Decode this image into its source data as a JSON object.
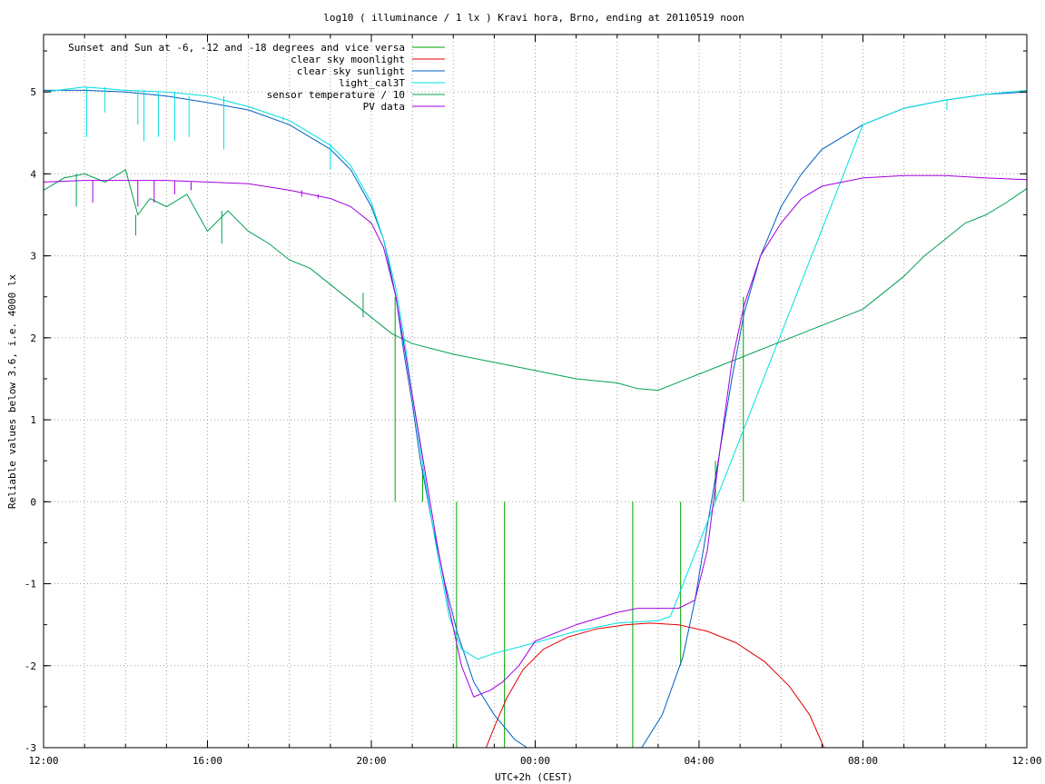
{
  "chart_data": {
    "type": "line",
    "title": "log10 ( illuminance / 1 lx ) Kravi hora, Brno, ending at 20110519 noon",
    "xlabel": "UTC+2h (CEST)",
    "ylabel": "Reliable values below 3.6, i.e. 4000 lx",
    "xlim": [
      0,
      24
    ],
    "ylim": [
      -3,
      5.7
    ],
    "x_unit": "hours since 12:00 of 20110518",
    "grid": true,
    "legend_position": "top-left",
    "x_ticks": [
      {
        "value": 0,
        "label": "12:00"
      },
      {
        "value": 4,
        "label": "16:00"
      },
      {
        "value": 8,
        "label": "20:00"
      },
      {
        "value": 12,
        "label": "00:00"
      },
      {
        "value": 16,
        "label": "04:00"
      },
      {
        "value": 20,
        "label": "08:00"
      },
      {
        "value": 24,
        "label": "12:00"
      }
    ],
    "x_minor_step": 1,
    "y_ticks": [
      {
        "value": 5,
        "label": "5"
      },
      {
        "value": 4,
        "label": "4"
      },
      {
        "value": 3,
        "label": "3"
      },
      {
        "value": 2,
        "label": "2"
      },
      {
        "value": 1,
        "label": "1"
      },
      {
        "value": 0,
        "label": "0"
      },
      {
        "value": -1,
        "label": "-1"
      },
      {
        "value": -2,
        "label": "-2"
      },
      {
        "value": -3,
        "label": "-3"
      }
    ],
    "y_minor_step": 0.5,
    "series": [
      {
        "name": "Sunset and Sun at -6, -12 and -18 degrees and vice versa",
        "color": "#00a000",
        "style": "impulses",
        "markers": [
          {
            "x": 8.58,
            "y_from": 0,
            "y_to": 2.5
          },
          {
            "x": 9.25,
            "y_from": 0,
            "y_to": 0.4
          },
          {
            "x": 10.08,
            "y_from": 0,
            "y_to": -3
          },
          {
            "x": 11.25,
            "y_from": 0,
            "y_to": -3
          },
          {
            "x": 14.38,
            "y_from": 0,
            "y_to": -3
          },
          {
            "x": 15.55,
            "y_from": 0,
            "y_to": -2
          },
          {
            "x": 16.4,
            "y_from": 0,
            "y_to": 0.5
          },
          {
            "x": 17.08,
            "y_from": 0,
            "y_to": 2.5
          }
        ]
      },
      {
        "name": "clear sky moonlight",
        "color": "#e00000",
        "points": [
          [
            10.8,
            -3.0
          ],
          [
            11.0,
            -2.75
          ],
          [
            11.3,
            -2.4
          ],
          [
            11.7,
            -2.05
          ],
          [
            12.2,
            -1.8
          ],
          [
            12.8,
            -1.65
          ],
          [
            13.5,
            -1.55
          ],
          [
            14.2,
            -1.5
          ],
          [
            14.8,
            -1.48
          ],
          [
            15.5,
            -1.5
          ],
          [
            16.2,
            -1.58
          ],
          [
            16.9,
            -1.72
          ],
          [
            17.6,
            -1.95
          ],
          [
            18.2,
            -2.25
          ],
          [
            18.7,
            -2.6
          ],
          [
            19.05,
            -3.0
          ]
        ]
      },
      {
        "name": "clear sky sunlight",
        "color": "#0060c0",
        "points": [
          [
            0,
            5.02
          ],
          [
            1,
            5.02
          ],
          [
            2,
            5.0
          ],
          [
            3,
            4.95
          ],
          [
            4,
            4.87
          ],
          [
            5,
            4.78
          ],
          [
            6,
            4.6
          ],
          [
            7,
            4.3
          ],
          [
            7.5,
            4.05
          ],
          [
            8,
            3.6
          ],
          [
            8.3,
            3.2
          ],
          [
            8.6,
            2.5
          ],
          [
            8.8,
            1.8
          ],
          [
            9.0,
            1.2
          ],
          [
            9.2,
            0.5
          ],
          [
            9.5,
            -0.3
          ],
          [
            9.8,
            -1.0
          ],
          [
            10.1,
            -1.6
          ],
          [
            10.5,
            -2.2
          ],
          [
            11.0,
            -2.6
          ],
          [
            11.5,
            -2.9
          ],
          [
            11.8,
            -3.0
          ]
        ],
        "points_b": [
          [
            14.6,
            -3.0
          ],
          [
            15.1,
            -2.6
          ],
          [
            15.6,
            -1.9
          ],
          [
            15.9,
            -1.2
          ],
          [
            16.2,
            -0.3
          ],
          [
            16.5,
            0.6
          ],
          [
            16.8,
            1.5
          ],
          [
            17.1,
            2.3
          ],
          [
            17.5,
            3.0
          ],
          [
            18.0,
            3.6
          ],
          [
            18.5,
            4.0
          ],
          [
            19.0,
            4.3
          ],
          [
            20.0,
            4.6
          ],
          [
            21.0,
            4.8
          ],
          [
            22.0,
            4.9
          ],
          [
            23.0,
            4.97
          ],
          [
            24.0,
            5.0
          ]
        ]
      },
      {
        "name": "light_cal3T",
        "color": "#00e0e0",
        "points": [
          [
            0,
            5.0
          ],
          [
            1,
            5.06
          ],
          [
            2,
            5.02
          ],
          [
            3,
            5.0
          ],
          [
            4,
            4.95
          ],
          [
            5,
            4.82
          ],
          [
            6,
            4.65
          ],
          [
            7,
            4.35
          ],
          [
            7.5,
            4.1
          ],
          [
            8,
            3.65
          ],
          [
            8.3,
            3.2
          ],
          [
            8.6,
            2.6
          ],
          [
            8.8,
            2.0
          ],
          [
            9.0,
            1.3
          ],
          [
            9.3,
            0.3
          ],
          [
            9.6,
            -0.6
          ],
          [
            9.9,
            -1.4
          ],
          [
            10.2,
            -1.8
          ],
          [
            10.6,
            -1.92
          ],
          [
            11.0,
            -1.85
          ],
          [
            12.0,
            -1.72
          ],
          [
            13.0,
            -1.58
          ],
          [
            14.0,
            -1.48
          ],
          [
            15.0,
            -1.45
          ],
          [
            15.3,
            -1.4
          ],
          [
            20.0,
            4.6
          ],
          [
            21.0,
            4.8
          ],
          [
            22.0,
            4.9
          ],
          [
            23.0,
            4.97
          ],
          [
            24.0,
            5.02
          ]
        ],
        "dips": [
          [
            1.05,
            4.45
          ],
          [
            1.5,
            4.75
          ],
          [
            2.3,
            4.6
          ],
          [
            2.45,
            4.4
          ],
          [
            2.8,
            4.45
          ],
          [
            3.2,
            4.4
          ],
          [
            3.55,
            4.45
          ],
          [
            4.4,
            4.3
          ],
          [
            5.85,
            4.7
          ],
          [
            7.0,
            4.05
          ],
          [
            22.05,
            4.78
          ]
        ]
      },
      {
        "name": "sensor temperature / 10",
        "color": "#00a050",
        "points": [
          [
            0,
            3.8
          ],
          [
            0.5,
            3.95
          ],
          [
            1.0,
            4.0
          ],
          [
            1.5,
            3.9
          ],
          [
            2.0,
            4.05
          ],
          [
            2.3,
            3.5
          ],
          [
            2.6,
            3.7
          ],
          [
            3.0,
            3.6
          ],
          [
            3.5,
            3.75
          ],
          [
            4.0,
            3.3
          ],
          [
            4.5,
            3.55
          ],
          [
            5.0,
            3.3
          ],
          [
            5.5,
            3.15
          ],
          [
            6.0,
            2.95
          ],
          [
            6.5,
            2.85
          ],
          [
            7.0,
            2.65
          ],
          [
            7.5,
            2.45
          ],
          [
            8.0,
            2.25
          ],
          [
            8.5,
            2.05
          ],
          [
            9.0,
            1.93
          ],
          [
            10.0,
            1.8
          ],
          [
            11.0,
            1.7
          ],
          [
            12.0,
            1.6
          ],
          [
            13.0,
            1.5
          ],
          [
            14.0,
            1.45
          ],
          [
            14.5,
            1.38
          ],
          [
            15.0,
            1.36
          ],
          [
            20.0,
            2.35
          ],
          [
            20.5,
            2.55
          ],
          [
            21.0,
            2.75
          ],
          [
            21.5,
            3.0
          ],
          [
            22.0,
            3.2
          ],
          [
            22.5,
            3.4
          ],
          [
            23.0,
            3.5
          ],
          [
            23.5,
            3.65
          ],
          [
            24.0,
            3.82
          ]
        ],
        "dips": [
          [
            0.8,
            3.6
          ],
          [
            2.25,
            3.25
          ],
          [
            4.35,
            3.15
          ],
          [
            7.8,
            2.55
          ]
        ]
      },
      {
        "name": "PV data",
        "color": "#a000e0",
        "points": [
          [
            0,
            3.9
          ],
          [
            1,
            3.92
          ],
          [
            2,
            3.92
          ],
          [
            3,
            3.92
          ],
          [
            4,
            3.9
          ],
          [
            5,
            3.88
          ],
          [
            6,
            3.8
          ],
          [
            7,
            3.7
          ],
          [
            7.5,
            3.6
          ],
          [
            8,
            3.4
          ],
          [
            8.3,
            3.1
          ],
          [
            8.6,
            2.5
          ],
          [
            8.8,
            1.9
          ],
          [
            9.0,
            1.3
          ],
          [
            9.3,
            0.4
          ],
          [
            9.6,
            -0.5
          ],
          [
            9.9,
            -1.3
          ],
          [
            10.2,
            -2.0
          ],
          [
            10.5,
            -2.38
          ],
          [
            10.9,
            -2.3
          ],
          [
            11.2,
            -2.2
          ],
          [
            11.6,
            -2.0
          ],
          [
            12.0,
            -1.7
          ],
          [
            13.0,
            -1.5
          ],
          [
            14.0,
            -1.35
          ],
          [
            14.5,
            -1.3
          ],
          [
            15.0,
            -1.3
          ],
          [
            15.5,
            -1.3
          ],
          [
            15.9,
            -1.2
          ],
          [
            16.2,
            -0.6
          ],
          [
            16.5,
            0.6
          ],
          [
            16.8,
            1.7
          ],
          [
            17.1,
            2.4
          ],
          [
            17.5,
            3.0
          ],
          [
            18.0,
            3.4
          ],
          [
            18.5,
            3.7
          ],
          [
            19.0,
            3.85
          ],
          [
            20.0,
            3.95
          ],
          [
            21.0,
            3.98
          ],
          [
            22.0,
            3.98
          ],
          [
            23.0,
            3.95
          ],
          [
            24.0,
            3.93
          ]
        ],
        "dips": [
          [
            1.2,
            3.65
          ],
          [
            2.3,
            3.6
          ],
          [
            2.7,
            3.65
          ],
          [
            3.2,
            3.75
          ],
          [
            3.6,
            3.8
          ],
          [
            6.3,
            3.72
          ],
          [
            6.7,
            3.75
          ]
        ]
      }
    ]
  }
}
